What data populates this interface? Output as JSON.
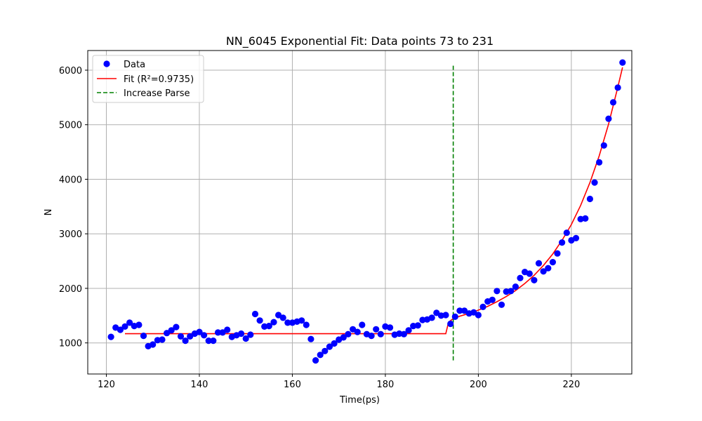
{
  "chart_data": {
    "type": "scatter",
    "title": "NN_6045 Exponential Fit: Data points 73 to 231",
    "xlabel": "Time(ps)",
    "ylabel": "N",
    "xlim": [
      116,
      233
    ],
    "ylim": [
      430,
      6360
    ],
    "xticks": [
      120,
      140,
      160,
      180,
      200,
      220
    ],
    "yticks": [
      1000,
      2000,
      3000,
      4000,
      5000,
      6000
    ],
    "grid": true,
    "legend_position": "top-left",
    "colors": {
      "data": "#0000ff",
      "fit": "#ff0000",
      "parse": "#008000",
      "grid": "#b0b0b0"
    },
    "series": [
      {
        "name": "Data",
        "kind": "scatter",
        "x": [
          121,
          122,
          123,
          124,
          125,
          126,
          127,
          128,
          129,
          130,
          131,
          132,
          133,
          134,
          135,
          136,
          137,
          138,
          139,
          140,
          141,
          142,
          143,
          144,
          145,
          146,
          147,
          148,
          149,
          150,
          151,
          152,
          153,
          154,
          155,
          156,
          157,
          158,
          159,
          160,
          161,
          162,
          163,
          164,
          165,
          166,
          167,
          168,
          169,
          170,
          171,
          172,
          173,
          174,
          175,
          176,
          177,
          178,
          179,
          180,
          181,
          182,
          183,
          184,
          185,
          186,
          187,
          188,
          189,
          190,
          191,
          192,
          193,
          194,
          195,
          196,
          197,
          198,
          199,
          200,
          201,
          202,
          203,
          204,
          205,
          206,
          207,
          208,
          209,
          210,
          211,
          212,
          213,
          214,
          215,
          216,
          217,
          218,
          219,
          220,
          221,
          222,
          223,
          224,
          225,
          226,
          227,
          228,
          229,
          230,
          231
        ],
        "y": [
          1110,
          1280,
          1240,
          1300,
          1370,
          1310,
          1330,
          1130,
          940,
          970,
          1050,
          1060,
          1180,
          1230,
          1290,
          1120,
          1040,
          1120,
          1170,
          1200,
          1140,
          1040,
          1040,
          1190,
          1190,
          1240,
          1110,
          1140,
          1170,
          1080,
          1150,
          1530,
          1410,
          1300,
          1310,
          1380,
          1510,
          1460,
          1370,
          1370,
          1390,
          1410,
          1330,
          1070,
          680,
          780,
          850,
          930,
          990,
          1060,
          1100,
          1160,
          1250,
          1200,
          1330,
          1160,
          1130,
          1250,
          1160,
          1300,
          1280,
          1150,
          1170,
          1160,
          1230,
          1310,
          1320,
          1420,
          1430,
          1460,
          1550,
          1500,
          1510,
          1350,
          1480,
          1590,
          1590,
          1540,
          1560,
          1510,
          1660,
          1760,
          1790,
          1950,
          1700,
          1940,
          1950,
          2030,
          2190,
          2300,
          2270,
          2150,
          2460,
          2310,
          2370,
          2480,
          2640,
          2840,
          3020,
          2880,
          2920,
          3270,
          3280,
          3640,
          3940,
          4310,
          4620,
          5110,
          5410,
          5680,
          6140
        ]
      },
      {
        "name": "Fit (R²=0.9735)",
        "kind": "line",
        "x": [
          124,
          126,
          130,
          135,
          140,
          145,
          150,
          155,
          160,
          165,
          170,
          175,
          180,
          185,
          190,
          193,
          193.6,
          194.6,
          196,
          198,
          200,
          202,
          204,
          206,
          208,
          210,
          212,
          214,
          216,
          218,
          220,
          222,
          224,
          226,
          228,
          230,
          231
        ],
        "y": [
          1168,
          1168,
          1168,
          1168,
          1168,
          1168,
          1168,
          1168,
          1168,
          1168,
          1168,
          1168,
          1168,
          1168,
          1168,
          1168,
          1380,
          1445,
          1490,
          1540,
          1600,
          1670,
          1755,
          1850,
          1960,
          2090,
          2240,
          2420,
          2630,
          2880,
          3170,
          3520,
          3940,
          4430,
          5010,
          5690,
          6050
        ]
      },
      {
        "name": "Increase Parse",
        "kind": "vline",
        "x": 194.6,
        "y": [
          680,
          6100
        ]
      }
    ]
  }
}
